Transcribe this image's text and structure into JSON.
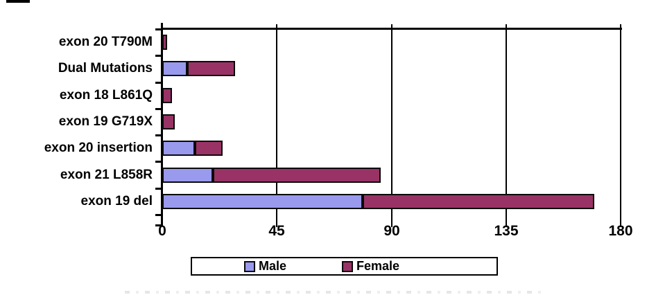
{
  "chart_data": {
    "type": "bar",
    "orientation": "horizontal",
    "stacked": true,
    "title": "",
    "xlabel": "",
    "ylabel": "",
    "xlim": [
      0,
      180
    ],
    "xticks": [
      0,
      45,
      90,
      135,
      180
    ],
    "grid": "vertical gridlines at each x tick, black",
    "legend_position": "bottom-center boxed",
    "categories_top_to_bottom": [
      "exon 20 T790M",
      "Dual Mutations",
      "exon 18 L861Q",
      "exon 19 G719X",
      "exon 20 insertion",
      "exon 21 L858R",
      "exon 19 del"
    ],
    "series": [
      {
        "name": "Male",
        "color": "#9999EE",
        "values": [
          0,
          9,
          0,
          0,
          12,
          19,
          78
        ]
      },
      {
        "name": "Female",
        "color": "#993366",
        "values": [
          1,
          18,
          3,
          4,
          10,
          65,
          90
        ]
      }
    ],
    "bar_border_color": "#0a0a0a"
  }
}
